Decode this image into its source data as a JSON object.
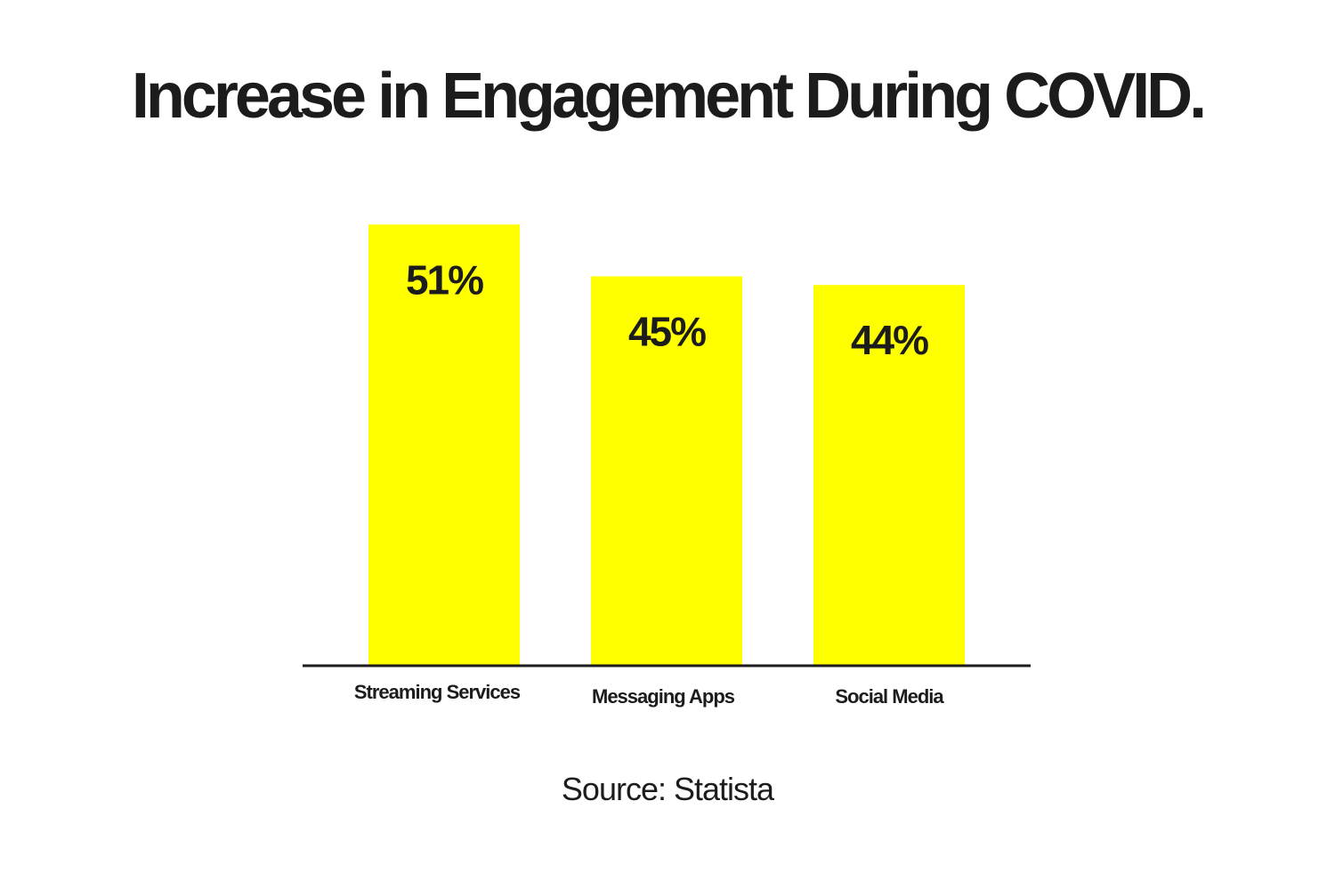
{
  "title": "Increase in Engagement During COVID.",
  "source": "Source: Statista",
  "colors": {
    "bar": "#ffff00",
    "text": "#1c1c1c",
    "axis": "#1c1c1c",
    "background": "#ffffff"
  },
  "chart_data": {
    "type": "bar",
    "title": "Increase in Engagement During COVID.",
    "categories": [
      "Streaming Services",
      "Messaging Apps",
      "Social Media"
    ],
    "values": [
      51,
      45,
      44
    ],
    "value_labels": [
      "51%",
      "45%",
      "44%"
    ],
    "unit": "%",
    "xlabel": "",
    "ylabel": "",
    "grid": false,
    "legend": "none"
  }
}
